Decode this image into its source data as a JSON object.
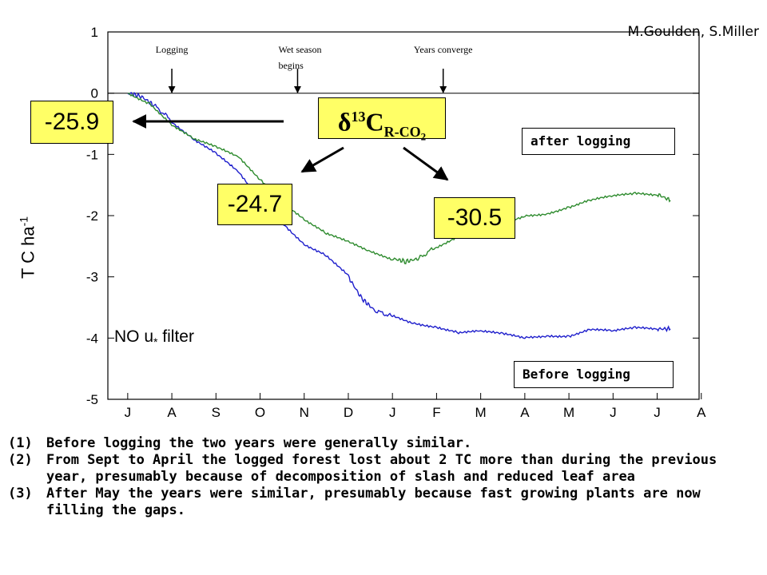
{
  "credit": "M.Goulden, S.Miller",
  "ylabel_base": "T C ha",
  "ylabel_exp": "-1",
  "filter_label_pre": "NO u",
  "filter_label_sub": "*",
  "filter_label_post": " filter",
  "events": [
    {
      "label_lines": [
        "Logging"
      ],
      "month_pos": 1.45
    },
    {
      "label_lines": [
        "Wet season",
        "begins"
      ],
      "month_pos": 4.3
    },
    {
      "label_lines": [
        "Years converge"
      ],
      "month_pos": 7.6
    }
  ],
  "isotope_label": {
    "delta": "δ",
    "sup": "13",
    "C": "C",
    "sub": "R-CO",
    "sub2": "2"
  },
  "value_boxes": {
    "left": "-25.9",
    "middle": "-24.7",
    "right": "-30.5"
  },
  "series_labels": {
    "after": "after logging",
    "before": "Before logging"
  },
  "notes": [
    {
      "num": "(1)",
      "text": "Before logging the two years were generally similar."
    },
    {
      "num": "(2)",
      "text": "From Sept to April the logged forest lost about 2 TC more than during the previous year, presumably because of decomposition of slash and reduced leaf area"
    },
    {
      "num": "(3)",
      "text": "After May the years were similar, presumably because fast growing plants are now filling the gaps."
    }
  ],
  "colors": {
    "before": "#1f1fcc",
    "after": "#2e8b2e",
    "box_fill": "#ffff66"
  },
  "chart_data": {
    "type": "line",
    "xlabel": "",
    "ylabel": "T C ha-1",
    "x_ticks": [
      "J",
      "A",
      "S",
      "O",
      "N",
      "D",
      "J",
      "F",
      "M",
      "A",
      "M",
      "J",
      "J",
      "A"
    ],
    "xlim": [
      0,
      13.4
    ],
    "ylim": [
      -5,
      1
    ],
    "y_ticks": [
      1,
      0,
      -1,
      -2,
      -3,
      -4,
      -5
    ],
    "grid": false,
    "series": [
      {
        "name": "Before logging",
        "color": "#1f1fcc",
        "x": [
          0,
          0.3,
          0.6,
          1.0,
          1.5,
          2.0,
          2.5,
          3.0,
          3.5,
          4.0,
          4.5,
          5.0,
          5.3,
          5.6,
          6.0,
          6.5,
          7.0,
          7.5,
          8.0,
          8.5,
          9.0,
          9.5,
          10.0,
          10.5,
          11.0,
          11.5,
          12.0,
          12.3
        ],
        "y": [
          0,
          -0.05,
          -0.2,
          -0.45,
          -0.75,
          -1.0,
          -1.3,
          -1.75,
          -2.1,
          -2.45,
          -2.65,
          -3.0,
          -3.35,
          -3.55,
          -3.65,
          -3.75,
          -3.8,
          -3.9,
          -3.9,
          -3.95,
          -4.0,
          -3.95,
          -3.95,
          -3.85,
          -3.9,
          -3.85,
          -3.85,
          -3.85
        ]
      },
      {
        "name": "after logging",
        "color": "#2e8b2e",
        "x": [
          0,
          0.5,
          1.0,
          1.5,
          2.0,
          2.5,
          3.0,
          3.5,
          4.0,
          4.5,
          5.0,
          5.5,
          6.0,
          6.3,
          6.6,
          7.0,
          7.5,
          8.0,
          8.5,
          9.0,
          9.5,
          10.0,
          10.5,
          11.0,
          11.5,
          12.0,
          12.3
        ],
        "y": [
          0,
          -0.15,
          -0.5,
          -0.75,
          -0.9,
          -1.05,
          -1.4,
          -1.75,
          -2.05,
          -2.3,
          -2.45,
          -2.6,
          -2.7,
          -2.75,
          -2.7,
          -2.5,
          -2.35,
          -2.3,
          -2.15,
          -2.0,
          -1.95,
          -1.85,
          -1.75,
          -1.7,
          -1.65,
          -1.65,
          -1.75
        ]
      }
    ]
  }
}
